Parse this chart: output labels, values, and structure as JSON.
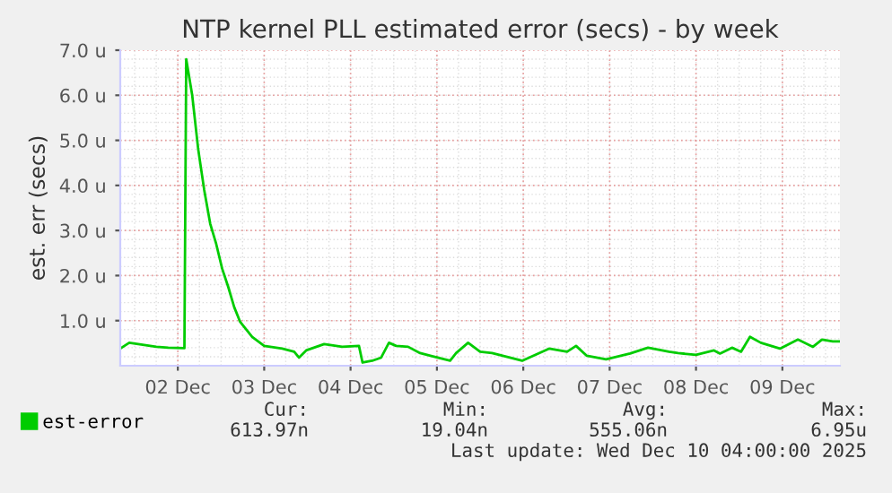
{
  "chart_data": {
    "type": "line",
    "title": "NTP kernel PLL estimated error (secs) - by week",
    "ylabel": "est. err (secs)",
    "x": [
      "2025-12-01T08:00",
      "2025-12-01T10:30",
      "2025-12-01T13:00",
      "2025-12-01T18:00",
      "2025-12-01T21:20",
      "2025-12-02T01:50",
      "2025-12-02T02:20",
      "2025-12-02T04:00",
      "2025-12-02T05:40",
      "2025-12-02T07:20",
      "2025-12-02T09:00",
      "2025-12-02T10:40",
      "2025-12-02T12:20",
      "2025-12-02T14:00",
      "2025-12-02T15:40",
      "2025-12-02T17:20",
      "2025-12-02T20:40",
      "2025-12-03T00:00",
      "2025-12-03T05:00",
      "2025-12-03T08:20",
      "2025-12-03T09:40",
      "2025-12-03T11:40",
      "2025-12-03T16:40",
      "2025-12-03T21:40",
      "2025-12-04T02:20",
      "2025-12-04T03:20",
      "2025-12-04T06:00",
      "2025-12-04T08:30",
      "2025-12-04T10:40",
      "2025-12-04T12:40",
      "2025-12-04T16:00",
      "2025-12-04T19:20",
      "2025-12-04T22:40",
      "2025-12-05T03:40",
      "2025-12-05T05:20",
      "2025-12-05T08:40",
      "2025-12-05T12:00",
      "2025-12-05T15:20",
      "2025-12-05T23:40",
      "2025-12-06T07:10",
      "2025-12-06T12:10",
      "2025-12-06T14:40",
      "2025-12-06T17:40",
      "2025-12-06T23:00",
      "2025-12-07T05:40",
      "2025-12-07T10:40",
      "2025-12-07T16:30",
      "2025-12-07T19:00",
      "2025-12-08T00:00",
      "2025-12-08T05:00",
      "2025-12-08T06:40",
      "2025-12-08T10:00",
      "2025-12-08T12:30",
      "2025-12-08T15:00",
      "2025-12-08T18:00",
      "2025-12-08T23:20",
      "2025-12-09T04:20",
      "2025-12-09T08:30",
      "2025-12-09T11:00",
      "2025-12-09T14:00",
      "2025-12-09T15:40"
    ],
    "series": [
      {
        "name": "est-error",
        "color": "#00cc00",
        "values": [
          0.38,
          0.51,
          0.48,
          0.42,
          0.4,
          0.39,
          6.8,
          6.0,
          4.8,
          3.9,
          3.15,
          2.7,
          2.15,
          1.75,
          1.3,
          0.97,
          0.64,
          0.44,
          0.38,
          0.31,
          0.18,
          0.34,
          0.48,
          0.42,
          0.44,
          0.07,
          0.11,
          0.18,
          0.51,
          0.44,
          0.42,
          0.28,
          0.21,
          0.11,
          0.28,
          0.51,
          0.31,
          0.28,
          0.11,
          0.38,
          0.31,
          0.44,
          0.22,
          0.14,
          0.27,
          0.4,
          0.31,
          0.28,
          0.24,
          0.34,
          0.27,
          0.4,
          0.31,
          0.64,
          0.51,
          0.38,
          0.58,
          0.42,
          0.58,
          0.54,
          0.54
        ]
      }
    ],
    "xlim": [
      "2025-12-01T08:00",
      "2025-12-09T16:00"
    ],
    "xticks": [
      {
        "value": "2025-12-02",
        "label": "02 Dec"
      },
      {
        "value": "2025-12-03",
        "label": "03 Dec"
      },
      {
        "value": "2025-12-04",
        "label": "04 Dec"
      },
      {
        "value": "2025-12-05",
        "label": "05 Dec"
      },
      {
        "value": "2025-12-06",
        "label": "06 Dec"
      },
      {
        "value": "2025-12-07",
        "label": "07 Dec"
      },
      {
        "value": "2025-12-08",
        "label": "08 Dec"
      },
      {
        "value": "2025-12-09",
        "label": "09 Dec"
      }
    ],
    "ylim": [
      0,
      7
    ],
    "yticks": [
      {
        "value": 1,
        "label": "1.0 u"
      },
      {
        "value": 2,
        "label": "2.0 u"
      },
      {
        "value": 3,
        "label": "3.0 u"
      },
      {
        "value": 4,
        "label": "4.0 u"
      },
      {
        "value": 5,
        "label": "5.0 u"
      },
      {
        "value": 6,
        "label": "6.0 u"
      },
      {
        "value": 7,
        "label": "7.0 u"
      }
    ],
    "grid": true,
    "legend": "bottom left",
    "marker": "none",
    "line_style": "solid",
    "annotations": [
      "Cur:",
      "Min:",
      "Avg:",
      "Max:",
      "613.97n",
      "19.04n",
      "555.06n",
      "6.95u",
      "Last update: Wed Dec 10 04:00:00 2025"
    ]
  }
}
